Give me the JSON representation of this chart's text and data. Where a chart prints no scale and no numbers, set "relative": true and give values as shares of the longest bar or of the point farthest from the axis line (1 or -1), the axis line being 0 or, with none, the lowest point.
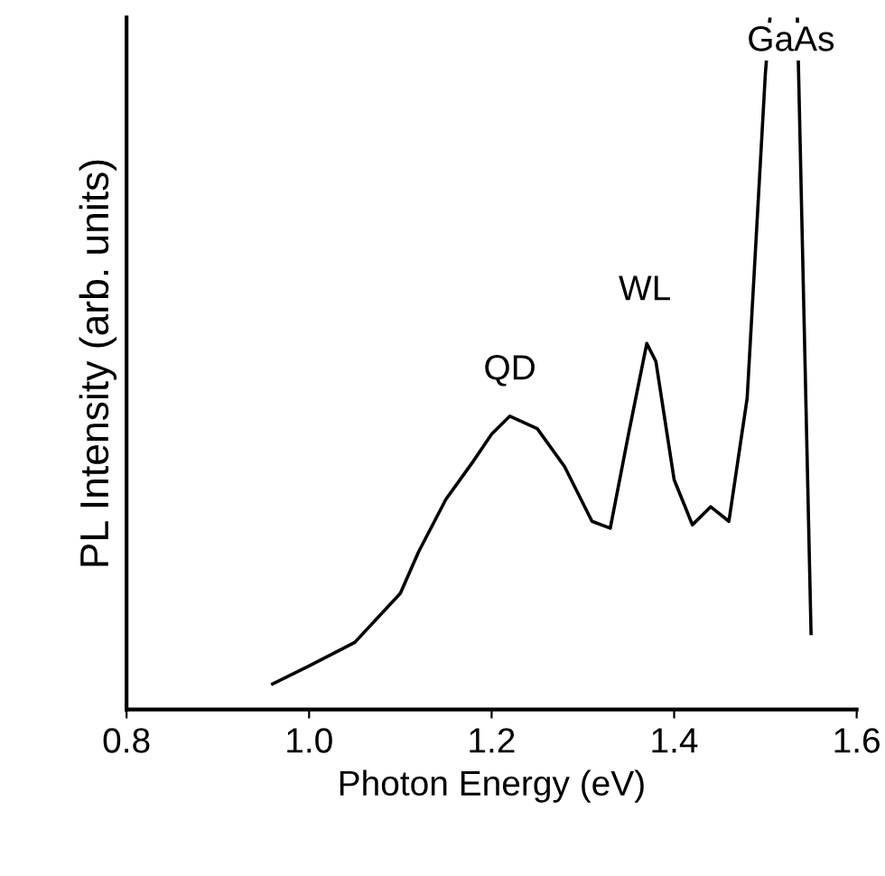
{
  "chart_data": {
    "type": "line",
    "relative": true,
    "xlabel": "Photon Energy (eV)",
    "ylabel": "PL Intensity (arb. units)",
    "xlim": [
      0.8,
      1.6
    ],
    "xticks": [
      {
        "value": 0.8,
        "label": "0.8"
      },
      {
        "value": 1.0,
        "label": "1.0"
      },
      {
        "value": 1.2,
        "label": "1.2"
      },
      {
        "value": 1.4,
        "label": "1.4"
      },
      {
        "value": 1.6,
        "label": "1.6"
      }
    ],
    "tick_labels": "x",
    "grid": false,
    "legend": false,
    "marker": "none",
    "line_style": "solid",
    "series": [
      {
        "color": "#000000",
        "x": [
          0.96,
          1.0,
          1.05,
          1.1,
          1.12,
          1.15,
          1.18,
          1.2,
          1.22,
          1.25,
          1.28,
          1.31,
          1.33,
          1.35,
          1.37,
          1.38,
          1.4,
          1.42,
          1.44,
          1.46,
          1.48,
          1.5,
          1.505,
          1.52,
          1.535,
          1.55
        ],
        "values": [
          0.037,
          0.063,
          0.097,
          0.168,
          0.228,
          0.304,
          0.359,
          0.398,
          0.424,
          0.406,
          0.351,
          0.272,
          0.262,
          0.398,
          0.529,
          0.503,
          0.332,
          0.267,
          0.293,
          0.272,
          0.45,
          0.92,
          1.0,
          null,
          1.0,
          0.11
        ]
      }
    ],
    "annotations": [
      "QD",
      "WL",
      "GaAs"
    ]
  }
}
